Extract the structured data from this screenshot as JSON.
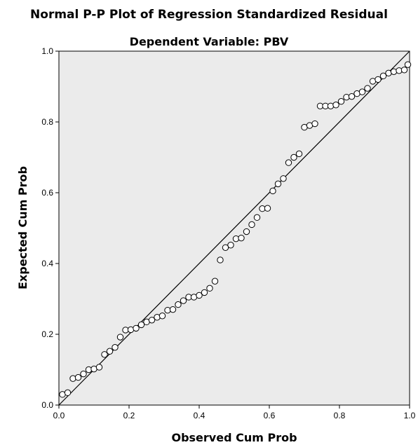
{
  "chart_data": {
    "type": "scatter",
    "title": "Normal P-P Plot of Regression Standardized Residual",
    "subtitle": "Dependent Variable: PBV",
    "xlabel": "Observed Cum Prob",
    "ylabel": "Expected Cum Prob",
    "xlim": [
      0.0,
      1.0
    ],
    "ylim": [
      0.0,
      1.0
    ],
    "xticks": [
      "0.0",
      "0.2",
      "0.4",
      "0.6",
      "0.8",
      "1.0"
    ],
    "yticks": [
      "0.0",
      "0.2",
      "0.4",
      "0.6",
      "0.8",
      "1.0"
    ],
    "grid": false,
    "reference_line": [
      [
        0,
        0
      ],
      [
        1,
        1
      ]
    ],
    "points": [
      [
        0.01,
        0.03
      ],
      [
        0.025,
        0.035
      ],
      [
        0.04,
        0.075
      ],
      [
        0.055,
        0.078
      ],
      [
        0.07,
        0.088
      ],
      [
        0.085,
        0.1
      ],
      [
        0.1,
        0.102
      ],
      [
        0.115,
        0.107
      ],
      [
        0.13,
        0.143
      ],
      [
        0.145,
        0.152
      ],
      [
        0.16,
        0.163
      ],
      [
        0.175,
        0.192
      ],
      [
        0.19,
        0.212
      ],
      [
        0.205,
        0.213
      ],
      [
        0.22,
        0.217
      ],
      [
        0.235,
        0.227
      ],
      [
        0.25,
        0.235
      ],
      [
        0.265,
        0.24
      ],
      [
        0.28,
        0.248
      ],
      [
        0.295,
        0.252
      ],
      [
        0.31,
        0.268
      ],
      [
        0.325,
        0.27
      ],
      [
        0.34,
        0.284
      ],
      [
        0.355,
        0.295
      ],
      [
        0.37,
        0.305
      ],
      [
        0.385,
        0.305
      ],
      [
        0.4,
        0.31
      ],
      [
        0.415,
        0.318
      ],
      [
        0.43,
        0.33
      ],
      [
        0.445,
        0.35
      ],
      [
        0.46,
        0.41
      ],
      [
        0.475,
        0.445
      ],
      [
        0.49,
        0.452
      ],
      [
        0.505,
        0.47
      ],
      [
        0.52,
        0.472
      ],
      [
        0.535,
        0.49
      ],
      [
        0.55,
        0.51
      ],
      [
        0.565,
        0.53
      ],
      [
        0.58,
        0.555
      ],
      [
        0.595,
        0.556
      ],
      [
        0.61,
        0.605
      ],
      [
        0.625,
        0.625
      ],
      [
        0.64,
        0.64
      ],
      [
        0.655,
        0.685
      ],
      [
        0.67,
        0.7
      ],
      [
        0.685,
        0.71
      ],
      [
        0.7,
        0.785
      ],
      [
        0.715,
        0.79
      ],
      [
        0.73,
        0.795
      ],
      [
        0.745,
        0.845
      ],
      [
        0.76,
        0.845
      ],
      [
        0.775,
        0.845
      ],
      [
        0.79,
        0.848
      ],
      [
        0.805,
        0.858
      ],
      [
        0.82,
        0.87
      ],
      [
        0.835,
        0.872
      ],
      [
        0.85,
        0.88
      ],
      [
        0.865,
        0.885
      ],
      [
        0.88,
        0.895
      ],
      [
        0.895,
        0.915
      ],
      [
        0.91,
        0.92
      ],
      [
        0.925,
        0.93
      ],
      [
        0.94,
        0.938
      ],
      [
        0.955,
        0.942
      ],
      [
        0.97,
        0.945
      ],
      [
        0.985,
        0.947
      ],
      [
        0.995,
        0.962
      ]
    ]
  },
  "colors": {
    "plot_background": "#ebebeb",
    "axis": "#000000",
    "marker_stroke": "#000000",
    "marker_fill": "#ffffff"
  }
}
